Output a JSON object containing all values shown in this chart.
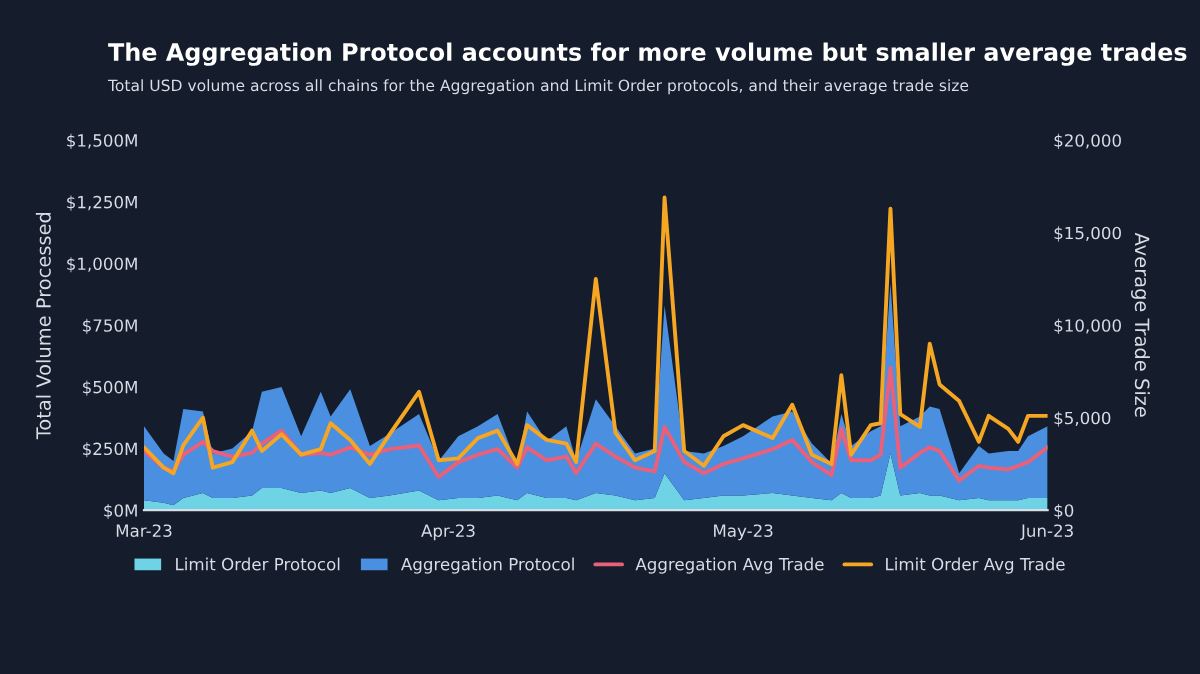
{
  "chart_data": {
    "type": "area",
    "stacked": true,
    "title": "The Aggregation Protocol accounts for more volume but smaller average trades",
    "subtitle": "Total USD volume across all chains for the Aggregation and Limit Order protocols, and their average trade size",
    "ylabel": "Total Volume Processed",
    "y2label": "Average Trade Size",
    "x": [
      "2023-03-01",
      "2023-03-03",
      "2023-03-04",
      "2023-03-05",
      "2023-03-07",
      "2023-03-08",
      "2023-03-10",
      "2023-03-12",
      "2023-03-13",
      "2023-03-15",
      "2023-03-17",
      "2023-03-19",
      "2023-03-20",
      "2023-03-22",
      "2023-03-24",
      "2023-03-26",
      "2023-03-29",
      "2023-03-31",
      "2023-04-02",
      "2023-04-04",
      "2023-04-06",
      "2023-04-08",
      "2023-04-09",
      "2023-04-11",
      "2023-04-13",
      "2023-04-14",
      "2023-04-16",
      "2023-04-18",
      "2023-04-20",
      "2023-04-22",
      "2023-04-23",
      "2023-04-25",
      "2023-04-27",
      "2023-04-29",
      "2023-05-01",
      "2023-05-04",
      "2023-05-06",
      "2023-05-08",
      "2023-05-10",
      "2023-05-11",
      "2023-05-12",
      "2023-05-14",
      "2023-05-15",
      "2023-05-16",
      "2023-05-17",
      "2023-05-19",
      "2023-05-20",
      "2023-05-21",
      "2023-05-23",
      "2023-05-25",
      "2023-05-26",
      "2023-05-28",
      "2023-05-29",
      "2023-05-30",
      "2023-06-01"
    ],
    "series": [
      {
        "name": "Limit Order Protocol",
        "color": "#6fd3e6",
        "values": [
          40,
          30,
          20,
          50,
          70,
          50,
          50,
          60,
          90,
          90,
          70,
          80,
          70,
          90,
          50,
          60,
          80,
          40,
          50,
          50,
          60,
          40,
          70,
          50,
          50,
          40,
          70,
          60,
          40,
          50,
          150,
          40,
          50,
          60,
          60,
          70,
          60,
          50,
          40,
          70,
          50,
          50,
          60,
          230,
          60,
          70,
          60,
          60,
          40,
          50,
          40,
          40,
          40,
          50,
          50
        ]
      },
      {
        "name": "Aggregation Protocol",
        "color": "#4a8fe0",
        "values": [
          300,
          200,
          180,
          360,
          330,
          180,
          200,
          260,
          390,
          410,
          230,
          400,
          310,
          400,
          210,
          250,
          310,
          160,
          250,
          290,
          330,
          140,
          330,
          230,
          290,
          160,
          380,
          280,
          190,
          200,
          680,
          200,
          180,
          200,
          240,
          310,
          340,
          220,
          150,
          320,
          210,
          270,
          280,
          690,
          280,
          310,
          360,
          350,
          110,
          210,
          190,
          200,
          200,
          250,
          290
        ]
      },
      {
        "name": "Aggregation Avg Trade",
        "type": "line",
        "axis": "y2",
        "color": "#e8607a",
        "values": [
          3200,
          2300,
          2100,
          3000,
          3700,
          3200,
          2900,
          3100,
          3600,
          4300,
          3000,
          3100,
          3000,
          3400,
          3000,
          3300,
          3500,
          1800,
          2600,
          3000,
          3300,
          2300,
          3400,
          2700,
          2900,
          2000,
          3600,
          2900,
          2300,
          2100,
          4500,
          2600,
          2000,
          2500,
          2800,
          3300,
          3800,
          2600,
          1900,
          4400,
          2700,
          2700,
          3000,
          7700,
          2300,
          3100,
          3400,
          3200,
          1600,
          2400,
          2300,
          2200,
          2400,
          2600,
          3400
        ]
      },
      {
        "name": "Limit Order Avg Trade",
        "type": "line",
        "axis": "y2",
        "color": "#f5a623",
        "values": [
          3400,
          2300,
          2000,
          3500,
          5000,
          2300,
          2600,
          4300,
          3200,
          4100,
          3000,
          3300,
          4700,
          3800,
          2500,
          4100,
          6400,
          2700,
          2800,
          3900,
          4300,
          2500,
          4600,
          3800,
          3600,
          2600,
          12500,
          4200,
          2700,
          3200,
          16900,
          3200,
          2400,
          4000,
          4600,
          3900,
          5700,
          3000,
          2500,
          7300,
          3000,
          4600,
          4700,
          16300,
          5200,
          4500,
          9000,
          6800,
          5900,
          3700,
          5100,
          4400,
          3700,
          5100,
          5100
        ]
      }
    ],
    "xlim": [
      "2023-03-01",
      "2023-06-01"
    ],
    "xticks": [
      {
        "value": "2023-03-01",
        "label": "Mar-23"
      },
      {
        "value": "2023-04-01",
        "label": "Apr-23"
      },
      {
        "value": "2023-05-01",
        "label": "May-23"
      },
      {
        "value": "2023-06-01",
        "label": "Jun-23"
      }
    ],
    "ylim": [
      0,
      1500
    ],
    "yticks": [
      {
        "value": 0,
        "label": "$0M"
      },
      {
        "value": 250,
        "label": "$250M"
      },
      {
        "value": 500,
        "label": "$500M"
      },
      {
        "value": 750,
        "label": "$750M"
      },
      {
        "value": 1000,
        "label": "$1,000M"
      },
      {
        "value": 1250,
        "label": "$1,250M"
      },
      {
        "value": 1500,
        "label": "$1,500M"
      }
    ],
    "y2lim": [
      0,
      20000
    ],
    "y2ticks": [
      {
        "value": 0,
        "label": "$0"
      },
      {
        "value": 5000,
        "label": "$5,000"
      },
      {
        "value": 10000,
        "label": "$10,000"
      },
      {
        "value": 15000,
        "label": "$15,000"
      },
      {
        "value": 20000,
        "label": "$20,000"
      }
    ],
    "grid": false,
    "legend": "bottom",
    "line_style": "solid",
    "marker": "none"
  }
}
